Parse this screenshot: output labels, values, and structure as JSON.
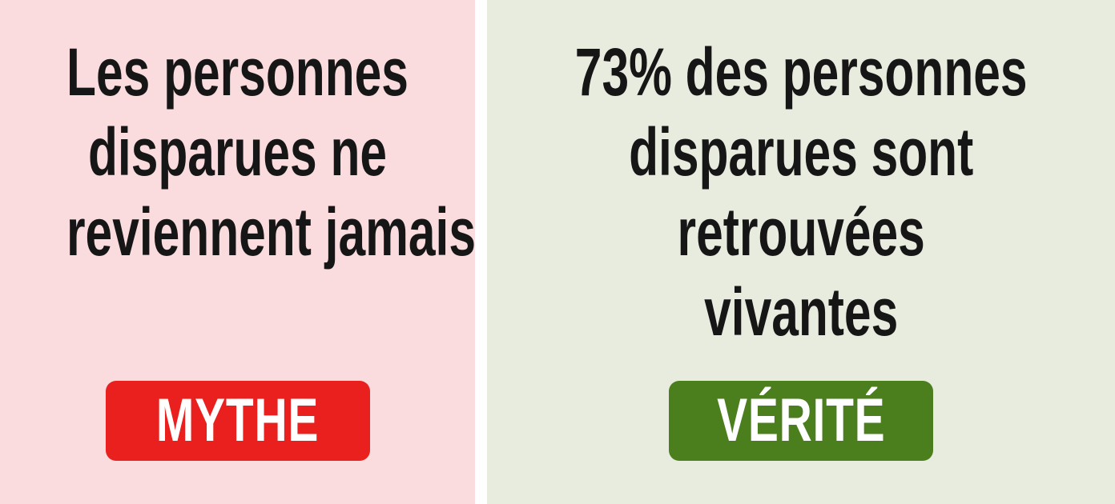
{
  "colors": {
    "page-bg": "#ffffff",
    "myth-panel-bg": "#fadcdf",
    "truth-panel-bg": "#e8ecdf",
    "myth-badge-bg": "#e9201d",
    "truth-badge-bg": "#4b7e1d",
    "statement-text": "#161616",
    "badge-text": "#ffffff"
  },
  "panels": {
    "myth": {
      "lines": [
        "Les personnes",
        "disparues ne",
        "reviennent jamais"
      ],
      "badge_label": "MYTHE"
    },
    "truth": {
      "lines": [
        "73% des personnes",
        "disparues sont",
        "retrouvées",
        "vivantes"
      ],
      "badge_label": "VÉRITÉ"
    }
  }
}
